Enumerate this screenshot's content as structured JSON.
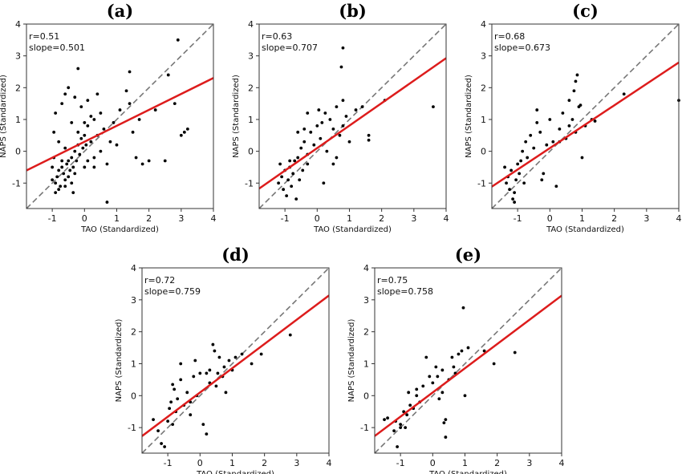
{
  "chart_data": [
    {
      "type": "scatter",
      "title": "(a)",
      "xlabel": "TAO (Standardized)",
      "ylabel": "NAPS (Standardized)",
      "xlim": [
        -1.8,
        4
      ],
      "ylim": [
        -1.8,
        4
      ],
      "xticks": [
        "-1",
        "0",
        "1",
        "2",
        "3",
        "4"
      ],
      "yticks": [
        "-1",
        "0",
        "1",
        "2",
        "3",
        "4"
      ],
      "stats": [
        "r=0.51",
        "slope=0.501"
      ],
      "fit": {
        "slope": 0.501,
        "intercept": 0.3
      },
      "reference_line": "y=x",
      "points": [
        [
          -1.0,
          -0.9
        ],
        [
          -0.9,
          -1.0
        ],
        [
          -0.85,
          -0.8
        ],
        [
          -0.8,
          -0.6
        ],
        [
          -0.75,
          -1.1
        ],
        [
          -0.7,
          -0.5
        ],
        [
          -0.65,
          -0.7
        ],
        [
          -0.6,
          -0.9
        ],
        [
          -0.55,
          -0.4
        ],
        [
          -0.5,
          -0.3
        ],
        [
          -0.45,
          -0.6
        ],
        [
          -0.4,
          -0.2
        ],
        [
          -0.35,
          -0.5
        ],
        [
          -0.3,
          0.0
        ],
        [
          -0.25,
          -0.3
        ],
        [
          -0.2,
          0.2
        ],
        [
          -0.15,
          -0.1
        ],
        [
          -0.1,
          0.4
        ],
        [
          -0.05,
          0.1
        ],
        [
          0.0,
          0.5
        ],
        [
          0.05,
          0.2
        ],
        [
          0.1,
          0.8
        ],
        [
          0.2,
          0.3
        ],
        [
          0.3,
          1.0
        ],
        [
          0.4,
          0.5
        ],
        [
          0.5,
          1.2
        ],
        [
          0.6,
          0.7
        ],
        [
          -1.0,
          -0.5
        ],
        [
          -0.95,
          0.6
        ],
        [
          -0.9,
          1.2
        ],
        [
          -0.8,
          0.3
        ],
        [
          -0.7,
          1.5
        ],
        [
          -0.6,
          0.1
        ],
        [
          -0.5,
          2.0
        ],
        [
          -0.4,
          0.9
        ],
        [
          -0.3,
          1.7
        ],
        [
          -0.2,
          2.6
        ],
        [
          -0.1,
          1.4
        ],
        [
          0.0,
          0.9
        ],
        [
          0.1,
          1.6
        ],
        [
          0.2,
          1.1
        ],
        [
          -0.9,
          -1.3
        ],
        [
          -0.8,
          -1.2
        ],
        [
          -0.7,
          -0.3
        ],
        [
          -0.6,
          -1.1
        ],
        [
          -0.5,
          -0.8
        ],
        [
          -0.4,
          -1.0
        ],
        [
          -0.3,
          -0.7
        ],
        [
          0.0,
          -0.5
        ],
        [
          0.1,
          -0.3
        ],
        [
          0.3,
          -0.2
        ],
        [
          0.5,
          0.0
        ],
        [
          0.7,
          -0.4
        ],
        [
          0.8,
          0.3
        ],
        [
          0.9,
          0.9
        ],
        [
          1.0,
          0.2
        ],
        [
          1.1,
          1.3
        ],
        [
          1.3,
          1.9
        ],
        [
          1.4,
          1.5
        ],
        [
          1.5,
          0.6
        ],
        [
          1.6,
          -0.2
        ],
        [
          1.7,
          1.0
        ],
        [
          1.8,
          -0.4
        ],
        [
          2.0,
          -0.3
        ],
        [
          2.2,
          1.3
        ],
        [
          2.5,
          -0.3
        ],
        [
          2.6,
          2.4
        ],
        [
          2.8,
          1.5
        ],
        [
          3.0,
          0.5
        ],
        [
          3.1,
          0.6
        ],
        [
          3.2,
          0.7
        ],
        [
          2.9,
          3.5
        ],
        [
          0.7,
          -1.6
        ],
        [
          1.4,
          2.5
        ],
        [
          -0.6,
          1.8
        ],
        [
          -0.2,
          0.6
        ],
        [
          -0.35,
          -1.3
        ],
        [
          -0.95,
          -0.2
        ],
        [
          0.4,
          1.8
        ],
        [
          0.3,
          -0.5
        ]
      ]
    },
    {
      "type": "scatter",
      "title": "(b)",
      "xlabel": "TAO (Standardized)",
      "ylabel": "NAPS (Standardized)",
      "xlim": [
        -1.8,
        4
      ],
      "ylim": [
        -1.8,
        4
      ],
      "xticks": [
        "-1",
        "0",
        "1",
        "2",
        "3",
        "4"
      ],
      "yticks": [
        "-1",
        "0",
        "1",
        "2",
        "3",
        "4"
      ],
      "stats": [
        "r=0.63",
        "slope=0.707"
      ],
      "fit": {
        "slope": 0.707,
        "intercept": 0.1
      },
      "reference_line": "y=x",
      "points": [
        [
          -1.2,
          -1.0
        ],
        [
          -1.1,
          -0.8
        ],
        [
          -1.05,
          -1.2
        ],
        [
          -1.0,
          -0.6
        ],
        [
          -0.95,
          -1.4
        ],
        [
          -0.9,
          -0.9
        ],
        [
          -0.85,
          -0.5
        ],
        [
          -0.8,
          -1.1
        ],
        [
          -0.75,
          -0.7
        ],
        [
          -0.7,
          -0.3
        ],
        [
          -0.65,
          -1.5
        ],
        [
          -0.6,
          -0.2
        ],
        [
          -0.55,
          -0.9
        ],
        [
          -0.5,
          0.1
        ],
        [
          -0.45,
          -0.6
        ],
        [
          -0.4,
          0.3
        ],
        [
          -0.3,
          -0.1
        ],
        [
          -0.2,
          0.6
        ],
        [
          -0.1,
          0.2
        ],
        [
          0.0,
          0.8
        ],
        [
          0.1,
          0.4
        ],
        [
          0.2,
          -1.0
        ],
        [
          0.3,
          0.0
        ],
        [
          0.4,
          1.0
        ],
        [
          0.5,
          0.7
        ],
        [
          0.6,
          1.4
        ],
        [
          0.7,
          0.5
        ],
        [
          0.8,
          1.6
        ],
        [
          0.9,
          1.1
        ],
        [
          1.0,
          0.3
        ],
        [
          1.2,
          1.3
        ],
        [
          1.4,
          1.4
        ],
        [
          1.6,
          0.5
        ],
        [
          1.6,
          0.35
        ],
        [
          2.1,
          1.6
        ],
        [
          3.6,
          1.4
        ],
        [
          0.75,
          2.65
        ],
        [
          0.8,
          3.25
        ],
        [
          -0.3,
          1.2
        ],
        [
          -0.4,
          0.7
        ],
        [
          -0.6,
          0.6
        ],
        [
          0.05,
          1.3
        ],
        [
          0.25,
          1.2
        ],
        [
          0.5,
          -0.4
        ],
        [
          0.6,
          -0.2
        ],
        [
          0.8,
          0.8
        ],
        [
          -0.85,
          -0.3
        ],
        [
          -0.3,
          -0.4
        ],
        [
          0.15,
          0.9
        ],
        [
          -1.15,
          -0.4
        ]
      ]
    },
    {
      "type": "scatter",
      "title": "(c)",
      "xlabel": "TAO (Standardized)",
      "ylabel": "NAPS (Standardized)",
      "xlim": [
        -1.8,
        4
      ],
      "ylim": [
        -1.8,
        4
      ],
      "xticks": [
        "-1",
        "0",
        "1",
        "2",
        "3",
        "4"
      ],
      "yticks": [
        "-1",
        "0",
        "1",
        "2",
        "3",
        "4"
      ],
      "stats": [
        "r=0.68",
        "slope=0.673"
      ],
      "fit": {
        "slope": 0.673,
        "intercept": 0.1
      },
      "reference_line": "y=x",
      "points": [
        [
          -1.4,
          -0.5
        ],
        [
          -1.35,
          -1.0
        ],
        [
          -1.3,
          -0.8
        ],
        [
          -1.25,
          -1.2
        ],
        [
          -1.2,
          -0.6
        ],
        [
          -1.15,
          -1.5
        ],
        [
          -1.1,
          -1.3
        ],
        [
          -1.05,
          -0.9
        ],
        [
          -1.0,
          -0.4
        ],
        [
          -0.95,
          -0.7
        ],
        [
          -0.9,
          -0.3
        ],
        [
          -0.85,
          0.0
        ],
        [
          -0.8,
          -1.0
        ],
        [
          -0.75,
          0.3
        ],
        [
          -0.7,
          -0.2
        ],
        [
          -0.6,
          0.5
        ],
        [
          -0.5,
          0.1
        ],
        [
          -0.4,
          0.9
        ],
        [
          -0.3,
          0.6
        ],
        [
          -0.2,
          -0.7
        ],
        [
          -0.1,
          0.2
        ],
        [
          0.0,
          1.0
        ],
        [
          0.1,
          0.3
        ],
        [
          0.2,
          -1.1
        ],
        [
          0.3,
          0.7
        ],
        [
          0.4,
          1.2
        ],
        [
          0.5,
          0.4
        ],
        [
          0.6,
          1.6
        ],
        [
          0.7,
          1.0
        ],
        [
          0.8,
          0.6
        ],
        [
          0.9,
          1.4
        ],
        [
          1.0,
          -0.2
        ],
        [
          1.1,
          0.8
        ],
        [
          1.3,
          1.0
        ],
        [
          1.4,
          0.95
        ],
        [
          2.3,
          1.8
        ],
        [
          4.0,
          1.6
        ],
        [
          0.85,
          2.4
        ],
        [
          0.8,
          2.2
        ],
        [
          -0.4,
          1.3
        ],
        [
          0.6,
          0.8
        ],
        [
          0.75,
          1.9
        ],
        [
          0.95,
          1.45
        ],
        [
          0.3,
          0.3
        ],
        [
          -0.25,
          -0.9
        ],
        [
          -1.1,
          -1.6
        ]
      ]
    },
    {
      "type": "scatter",
      "title": "(d)",
      "xlabel": "TAO (Standardized)",
      "ylabel": "NAPS (Standardized)",
      "xlim": [
        -1.8,
        4
      ],
      "ylim": [
        -1.8,
        4
      ],
      "xticks": [
        "-1",
        "0",
        "1",
        "2",
        "3",
        "4"
      ],
      "yticks": [
        "-1",
        "0",
        "1",
        "2",
        "3",
        "4"
      ],
      "stats": [
        "r=0.72",
        "slope=0.759"
      ],
      "fit": {
        "slope": 0.759,
        "intercept": 0.1
      },
      "reference_line": "y=x",
      "points": [
        [
          -1.45,
          -0.75
        ],
        [
          -1.3,
          -1.1
        ],
        [
          -1.2,
          -1.5
        ],
        [
          -1.1,
          -1.6
        ],
        [
          -1.0,
          -0.8
        ],
        [
          -0.95,
          -0.4
        ],
        [
          -0.9,
          -0.2
        ],
        [
          -0.85,
          -0.9
        ],
        [
          -0.8,
          0.2
        ],
        [
          -0.75,
          -0.5
        ],
        [
          -0.7,
          -0.1
        ],
        [
          -0.6,
          0.5
        ],
        [
          -0.5,
          -0.3
        ],
        [
          -0.4,
          0.1
        ],
        [
          -0.3,
          -0.2
        ],
        [
          -0.2,
          0.6
        ],
        [
          -0.1,
          0.0
        ],
        [
          0.0,
          0.7
        ],
        [
          0.1,
          -0.9
        ],
        [
          0.2,
          -1.2
        ],
        [
          0.3,
          0.4
        ],
        [
          0.4,
          1.6
        ],
        [
          0.5,
          0.3
        ],
        [
          0.6,
          1.2
        ],
        [
          0.7,
          0.6
        ],
        [
          0.8,
          0.1
        ],
        [
          0.9,
          1.1
        ],
        [
          1.1,
          1.2
        ],
        [
          1.3,
          1.3
        ],
        [
          1.6,
          1.0
        ],
        [
          1.9,
          1.3
        ],
        [
          2.8,
          1.9
        ],
        [
          0.3,
          0.8
        ],
        [
          0.55,
          0.7
        ],
        [
          0.75,
          0.9
        ],
        [
          1.0,
          0.8
        ],
        [
          -0.15,
          1.1
        ],
        [
          -0.6,
          1.0
        ],
        [
          -0.85,
          0.35
        ],
        [
          -0.3,
          -0.6
        ],
        [
          0.45,
          1.4
        ],
        [
          0.2,
          0.7
        ]
      ]
    },
    {
      "type": "scatter",
      "title": "(e)",
      "xlabel": "TAO (Standardized)",
      "ylabel": "NAPS (Standardized)",
      "xlim": [
        -1.8,
        4
      ],
      "ylim": [
        -1.8,
        4
      ],
      "xticks": [
        "-1",
        "0",
        "1",
        "2",
        "3",
        "4"
      ],
      "yticks": [
        "-1",
        "0",
        "1",
        "2",
        "3",
        "4"
      ],
      "stats": [
        "r=0.75",
        "slope=0.758"
      ],
      "fit": {
        "slope": 0.758,
        "intercept": 0.1
      },
      "reference_line": "y=x",
      "points": [
        [
          -1.5,
          -0.75
        ],
        [
          -1.4,
          -0.7
        ],
        [
          -1.2,
          -1.1
        ],
        [
          -1.15,
          -0.8
        ],
        [
          -1.1,
          -1.6
        ],
        [
          -1.0,
          -0.9
        ],
        [
          -0.9,
          -0.5
        ],
        [
          -0.85,
          -1.0
        ],
        [
          -0.8,
          -0.6
        ],
        [
          -0.75,
          0.1
        ],
        [
          -0.7,
          -0.3
        ],
        [
          -0.5,
          0.0
        ],
        [
          -0.4,
          -0.2
        ],
        [
          -0.3,
          0.3
        ],
        [
          -0.2,
          1.2
        ],
        [
          -0.1,
          0.6
        ],
        [
          0.0,
          0.4
        ],
        [
          0.1,
          0.9
        ],
        [
          0.2,
          -0.1
        ],
        [
          0.3,
          0.8
        ],
        [
          0.35,
          -0.85
        ],
        [
          0.4,
          -1.3
        ],
        [
          0.5,
          0.5
        ],
        [
          0.6,
          1.2
        ],
        [
          0.7,
          0.7
        ],
        [
          0.8,
          1.3
        ],
        [
          0.9,
          1.4
        ],
        [
          1.0,
          0.0
        ],
        [
          1.1,
          1.5
        ],
        [
          1.6,
          1.4
        ],
        [
          1.9,
          1.0
        ],
        [
          2.55,
          1.35
        ],
        [
          0.95,
          2.75
        ],
        [
          0.3,
          0.1
        ],
        [
          0.4,
          -0.75
        ],
        [
          -0.6,
          -0.4
        ],
        [
          -1.0,
          -1.0
        ],
        [
          -0.5,
          0.2
        ],
        [
          0.65,
          0.9
        ],
        [
          0.15,
          0.6
        ]
      ]
    }
  ]
}
